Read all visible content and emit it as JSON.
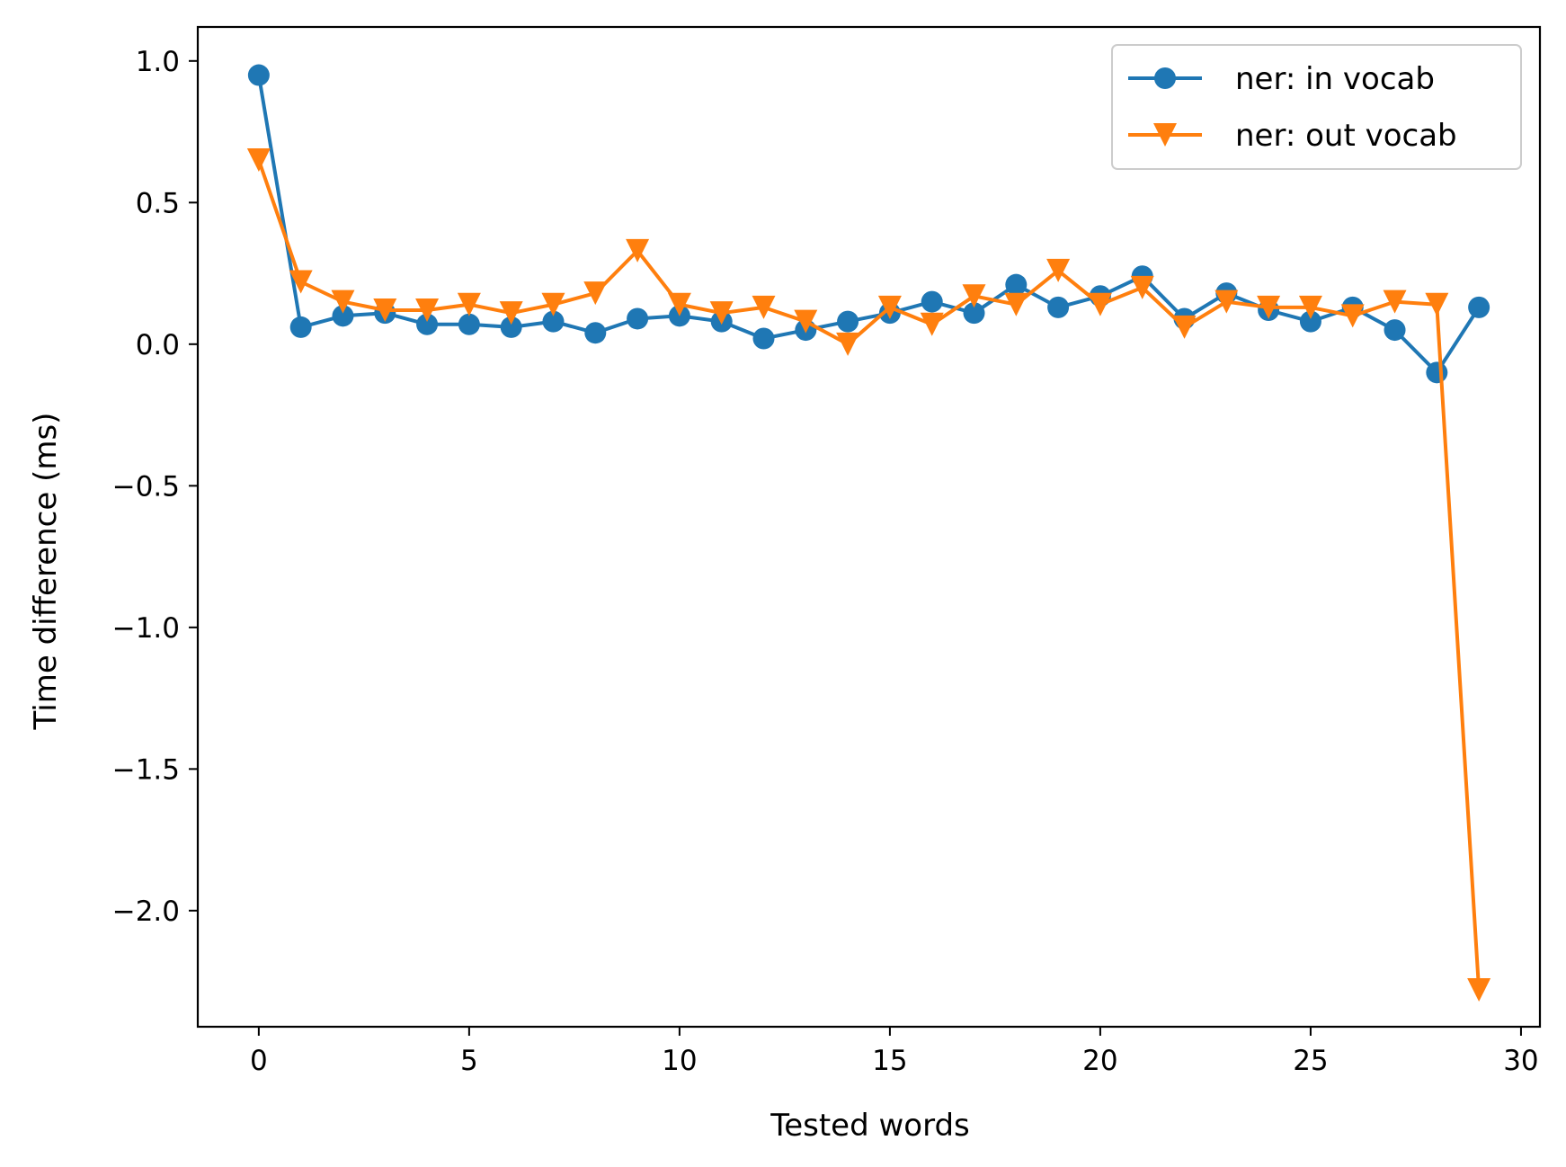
{
  "chart_data": {
    "type": "line",
    "title": "",
    "xlabel": "Tested words",
    "ylabel": "Time difference (ms)",
    "xlim": [
      -1.45,
      30.45
    ],
    "ylim": [
      -2.41,
      1.12
    ],
    "xticks": [
      0,
      5,
      10,
      15,
      20,
      25,
      30
    ],
    "xtick_labels": [
      "0",
      "5",
      "10",
      "15",
      "20",
      "25",
      "30"
    ],
    "yticks": [
      1.0,
      0.5,
      0.0,
      -0.5,
      -1.0,
      -1.5,
      -2.0
    ],
    "ytick_labels": [
      "1.0",
      "0.5",
      "0.0",
      "−0.5",
      "−1.0",
      "−1.5",
      "−2.0"
    ],
    "grid": false,
    "legend_position": "top-right",
    "x": [
      0,
      1,
      2,
      3,
      4,
      5,
      6,
      7,
      8,
      9,
      10,
      11,
      12,
      13,
      14,
      15,
      16,
      17,
      18,
      19,
      20,
      21,
      22,
      23,
      24,
      25,
      26,
      27,
      28,
      29
    ],
    "series": [
      {
        "name": "ner: in vocab",
        "color": "#1f77b4",
        "marker": "circle",
        "values": [
          0.95,
          0.06,
          0.1,
          0.11,
          0.07,
          0.07,
          0.06,
          0.08,
          0.04,
          0.09,
          0.1,
          0.08,
          0.02,
          0.05,
          0.08,
          0.11,
          0.15,
          0.11,
          0.21,
          0.13,
          0.17,
          0.24,
          0.09,
          0.18,
          0.12,
          0.08,
          0.13,
          0.05,
          -0.1,
          0.13
        ]
      },
      {
        "name": "ner: out vocab",
        "color": "#ff7f0e",
        "marker": "triangle-down",
        "values": [
          0.65,
          0.22,
          0.15,
          0.12,
          0.12,
          0.14,
          0.11,
          0.14,
          0.18,
          0.33,
          0.14,
          0.11,
          0.13,
          0.08,
          0.0,
          0.13,
          0.07,
          0.17,
          0.14,
          0.26,
          0.14,
          0.2,
          0.06,
          0.15,
          0.13,
          0.13,
          0.1,
          0.15,
          0.14,
          -2.28
        ]
      }
    ]
  }
}
